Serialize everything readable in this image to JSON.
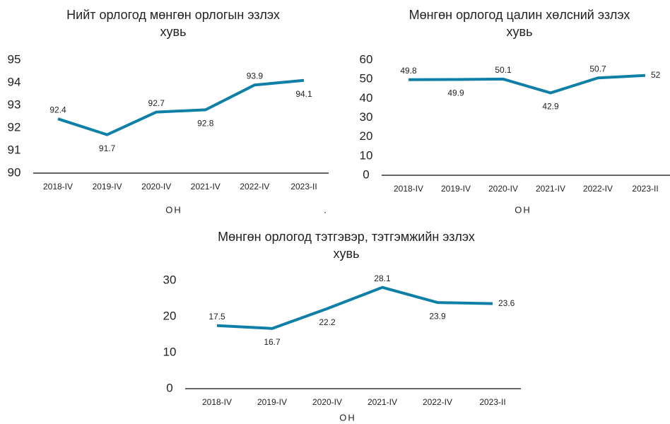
{
  "footnote": ".",
  "chart_data": [
    {
      "type": "line",
      "title": [
        "Нийт орлогод мөнгөн орлогын эзлэх",
        "хувь"
      ],
      "categories": [
        "2018-IV",
        "2019-IV",
        "2020-IV",
        "2021-IV",
        "2022-IV",
        "2023-II"
      ],
      "values": [
        92.4,
        91.7,
        92.7,
        92.8,
        93.9,
        94.1
      ],
      "color": "#0e7fa6",
      "ylim": [
        90,
        95
      ],
      "yticks": [
        90,
        91,
        92,
        93,
        94,
        95
      ],
      "xlabel": "ОН"
    },
    {
      "type": "line",
      "title": [
        "Мөнгөн орлогод цалин хөлсний эзлэх",
        "хувь"
      ],
      "categories": [
        "2018-IV",
        "2019-IV",
        "2020-IV",
        "2021-IV",
        "2022-IV",
        "2023-II"
      ],
      "values": [
        49.8,
        49.9,
        50.1,
        42.9,
        50.7,
        52
      ],
      "color": "#0e7fa6",
      "ylim": [
        0,
        60
      ],
      "yticks": [
        0,
        10,
        20,
        30,
        40,
        50,
        60
      ],
      "xlabel": "ОН"
    },
    {
      "type": "line",
      "title": [
        "Мөнгөн орлогод тэтгэвэр, тэтгэмжийн эзлэх",
        "хувь"
      ],
      "categories": [
        "2018-IV",
        "2019-IV",
        "2020-IV",
        "2021-IV",
        "2022-IV",
        "2023-II"
      ],
      "values": [
        17.5,
        16.7,
        22.2,
        28.1,
        23.9,
        23.6
      ],
      "color": "#0e7fa6",
      "ylim": [
        0,
        30
      ],
      "yticks": [
        0,
        10,
        20,
        30
      ],
      "xlabel": "ОН"
    }
  ]
}
